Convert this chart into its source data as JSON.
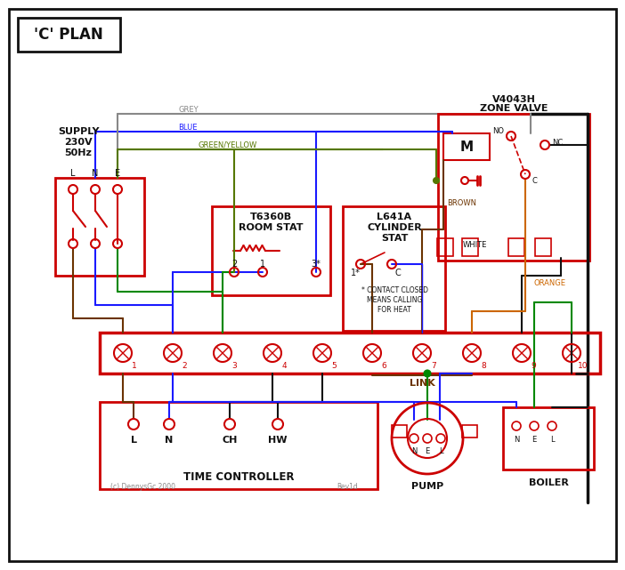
{
  "bg": "#ffffff",
  "red": "#cc0000",
  "blue": "#1a1aff",
  "green": "#008800",
  "brown": "#6b3300",
  "grey": "#888888",
  "black": "#111111",
  "orange": "#cc6600",
  "gyl": "#557700",
  "title": "'C' PLAN",
  "zone_v1": "V4043H",
  "zone_v2": "ZONE VALVE",
  "room_s1": "T6360B",
  "room_s2": "ROOM STAT",
  "cyl_s1": "L641A",
  "cyl_s2": "CYLINDER",
  "cyl_s3": "STAT",
  "tc_label": "TIME CONTROLLER",
  "pump_label": "PUMP",
  "boiler_label": "BOILER",
  "link_label": "LINK",
  "supply1": "SUPPLY",
  "supply2": "230V",
  "supply3": "50Hz",
  "note1": "* CONTACT CLOSED",
  "note2": "MEANS CALLING",
  "note3": "FOR HEAT",
  "copyright": "(c) DennysGc 2000",
  "rev": "Rev1d",
  "grey_label": "GREY",
  "blue_label": "BLUE",
  "gyl_label": "GREEN/YELLOW",
  "brown_label": "BROWN",
  "white_label": "WHITE",
  "orange_label": "ORANGE"
}
